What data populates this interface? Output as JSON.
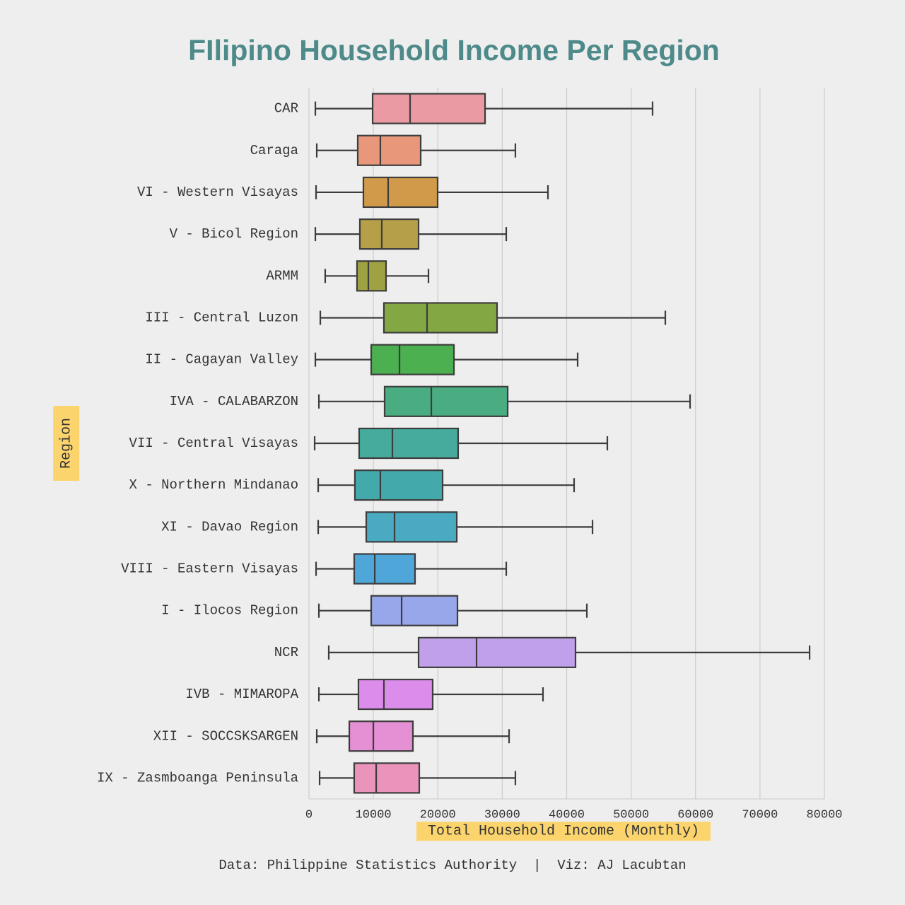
{
  "chart_data": {
    "type": "boxplot",
    "orientation": "horizontal",
    "title": "FIlipino Household Income Per Region",
    "xlabel": "Total Household Income (Monthly)",
    "ylabel": "Region",
    "footer": "Data: Philippine Statistics Authority  |  Viz: AJ Lacubtan",
    "xlim": [
      0,
      80000
    ],
    "xticks": [
      0,
      10000,
      20000,
      30000,
      40000,
      50000,
      60000,
      70000,
      80000
    ],
    "grid": true,
    "categories": [
      "CAR",
      "Caraga",
      "VI - Western Visayas",
      "V - Bicol Region",
      "ARMM",
      "III - Central Luzon",
      "II - Cagayan Valley",
      "IVA - CALABARZON",
      "VII - Central Visayas",
      "X - Northern Mindanao",
      "XI - Davao Region",
      "VIII - Eastern Visayas",
      "I - Ilocos Region",
      "NCR",
      "IVB - MIMAROPA",
      "XII - SOCCSKSARGEN",
      "IX - Zasmboanga Peninsula"
    ],
    "colors": [
      "#ea9aa3",
      "#e8977a",
      "#d19a4a",
      "#b59f48",
      "#9fa243",
      "#83a843",
      "#4caf50",
      "#4aad82",
      "#46ab9c",
      "#44a9aa",
      "#4aaac2",
      "#4fa6d8",
      "#97a7ea",
      "#c0a0ea",
      "#dc8cea",
      "#e58fd4",
      "#ea93bb"
    ],
    "boxes": [
      {
        "min": 990,
        "q1": 9880,
        "median": 15690,
        "q3": 27330,
        "max": 53330
      },
      {
        "min": 1210,
        "q1": 7570,
        "median": 11080,
        "q3": 17340,
        "max": 32040
      },
      {
        "min": 1100,
        "q1": 8450,
        "median": 12290,
        "q3": 19970,
        "max": 37090
      },
      {
        "min": 990,
        "q1": 7900,
        "median": 11300,
        "q3": 17010,
        "max": 30620
      },
      {
        "min": 2520,
        "q1": 7460,
        "median": 9220,
        "q3": 11960,
        "max": 18550
      },
      {
        "min": 1760,
        "q1": 11630,
        "median": 18330,
        "q3": 29190,
        "max": 55310
      },
      {
        "min": 990,
        "q1": 9660,
        "median": 14050,
        "q3": 22500,
        "max": 41700
      },
      {
        "min": 1540,
        "q1": 11740,
        "median": 18990,
        "q3": 30840,
        "max": 59150
      },
      {
        "min": 880,
        "q1": 7790,
        "median": 12950,
        "q3": 23150,
        "max": 46310
      },
      {
        "min": 1430,
        "q1": 7130,
        "median": 11080,
        "q3": 20740,
        "max": 41150
      },
      {
        "min": 1430,
        "q1": 8890,
        "median": 13280,
        "q3": 22940,
        "max": 44010
      },
      {
        "min": 1100,
        "q1": 7020,
        "median": 10210,
        "q3": 16460,
        "max": 30620
      },
      {
        "min": 1540,
        "q1": 9660,
        "median": 14380,
        "q3": 23050,
        "max": 43130
      },
      {
        "min": 3070,
        "q1": 17010,
        "median": 26010,
        "q3": 41370,
        "max": 77700
      },
      {
        "min": 1540,
        "q1": 7680,
        "median": 11630,
        "q3": 19200,
        "max": 36320
      },
      {
        "min": 1210,
        "q1": 6260,
        "median": 9990,
        "q3": 16130,
        "max": 31060
      },
      {
        "min": 1650,
        "q1": 7020,
        "median": 10430,
        "q3": 17120,
        "max": 32040
      }
    ]
  }
}
